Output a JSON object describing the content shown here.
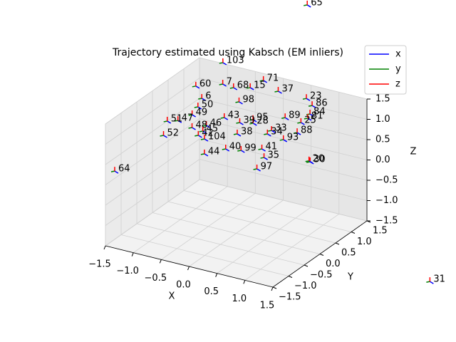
{
  "chart_data": {
    "type": "scatter3d",
    "title": "Trajectory estimated using Kabsch (EM inliers)",
    "xlabel": "X",
    "ylabel": "Y",
    "zlabel": "Z",
    "xlim": [
      -1.5,
      1.5
    ],
    "ylim": [
      -1.5,
      1.5
    ],
    "zlim": [
      -1.5,
      1.5
    ],
    "xticks": [
      {
        "value": -1.5,
        "label": "−1.5"
      },
      {
        "value": -1,
        "label": "−1.0"
      },
      {
        "value": -0.5,
        "label": "−0.5"
      },
      {
        "value": 0,
        "label": "0.0"
      },
      0.5,
      {
        "value": 1,
        "label": "1.0"
      },
      1.5
    ],
    "yticks": [
      {
        "value": -1.5,
        "label": "−1.5"
      },
      {
        "value": -1,
        "label": "−1.0"
      },
      {
        "value": -0.5,
        "label": "−0.5"
      },
      {
        "value": 0,
        "label": "0.0"
      },
      0.5,
      {
        "value": 1,
        "label": "1.0"
      },
      1.5
    ],
    "zticks": [
      {
        "value": -1.5,
        "label": "−1.5"
      },
      {
        "value": -1,
        "label": "−1.0"
      },
      {
        "value": -0.5,
        "label": "−0.5"
      },
      {
        "value": 0,
        "label": "0.0"
      },
      0.5,
      {
        "value": 1,
        "label": "1.0"
      },
      1.5
    ],
    "grid": true,
    "legend_loc": "upper right",
    "series": [
      {
        "name": "x",
        "color": "#0000ff"
      },
      {
        "name": "y",
        "color": "#008000"
      },
      {
        "name": "z",
        "color": "#ff0000"
      }
    ],
    "points": [
      {
        "label": "103",
        "x": -1.09,
        "y": 1.63,
        "z": 1.5
      },
      {
        "label": "71",
        "x": -0.37,
        "y": 1.64,
        "z": 1.3
      },
      {
        "label": "7",
        "x": -1.07,
        "y": 1.59,
        "z": 1
      },
      {
        "label": "60",
        "x": -1.39,
        "y": 1.3,
        "z": 1
      },
      {
        "label": "68",
        "x": -0.86,
        "y": 1.56,
        "z": 1
      },
      {
        "label": "15",
        "x": -0.64,
        "y": 1.7,
        "z": 1
      },
      {
        "label": "37",
        "x": -0.2,
        "y": 1.81,
        "z": 1
      },
      {
        "label": "23",
        "x": 0.31,
        "y": 1.8,
        "z": 1
      },
      {
        "label": "86",
        "x": 0.52,
        "y": 1.61,
        "z": 1
      },
      {
        "label": "84",
        "x": 0.65,
        "y": 1.31,
        "z": 1
      },
      {
        "label": "81",
        "x": 0.7,
        "y": 1.15,
        "z": 1
      },
      {
        "label": "25",
        "x": 0.69,
        "y": 0.95,
        "z": 1
      },
      {
        "label": "89",
        "x": 0.39,
        "y": 0.98,
        "z": 1
      },
      {
        "label": "88",
        "x": 0.83,
        "y": 0.58,
        "z": 1
      },
      {
        "label": "93",
        "x": 0.78,
        "y": 0.23,
        "z": 1
      },
      {
        "label": "33",
        "x": 0.45,
        "y": 0.44,
        "z": 1
      },
      {
        "label": "34",
        "x": 0.46,
        "y": 0.29,
        "z": 1
      },
      {
        "label": "95",
        "x": 0,
        "y": 0.65,
        "z": 1
      },
      {
        "label": "28",
        "x": 0.07,
        "y": 0.53,
        "z": 1
      },
      {
        "label": "39",
        "x": -0.12,
        "y": 0.44,
        "z": 1
      },
      {
        "label": "38",
        "x": 0.06,
        "y": 0.04,
        "z": 1
      },
      {
        "label": "98",
        "x": -0.52,
        "y": 1.13,
        "z": 1
      },
      {
        "label": "43",
        "x": -0.42,
        "y": 0.48,
        "z": 1
      },
      {
        "label": "6",
        "x": -1.08,
        "y": 0.94,
        "z": 1
      },
      {
        "label": "50",
        "x": -0.97,
        "y": 0.62,
        "z": 1
      },
      {
        "label": "49",
        "x": -0.9,
        "y": 0.31,
        "z": 1
      },
      {
        "label": "47",
        "x": -0.98,
        "y": 0,
        "z": 1
      },
      {
        "label": "51",
        "x": -1.11,
        "y": -0.11,
        "z": 1
      },
      {
        "label": "46",
        "x": -0.51,
        "y": 0.07,
        "z": 1
      },
      {
        "label": "48",
        "x": -0.66,
        "y": -0.12,
        "z": 1
      },
      {
        "label": "45",
        "x": -0.45,
        "y": -0.15,
        "z": 1
      },
      {
        "label": "42",
        "x": -0.43,
        "y": -0.33,
        "z": 1
      },
      {
        "label": "104",
        "x": -0.28,
        "y": -0.4,
        "z": 1
      },
      {
        "label": "52",
        "x": -0.89,
        "y": -0.62,
        "z": 1
      },
      {
        "label": "44",
        "x": 0,
        "y": -0.9,
        "z": 1
      },
      {
        "label": "40",
        "x": 0.19,
        "y": -0.56,
        "z": 1
      },
      {
        "label": "99",
        "x": 0.42,
        "y": -0.48,
        "z": 1
      },
      {
        "label": "41",
        "x": 0.67,
        "y": -0.26,
        "z": 1
      },
      {
        "label": "35",
        "x": 0.86,
        "y": -0.53,
        "z": 1
      },
      {
        "label": "97",
        "x": 0.98,
        "y": -0.97,
        "z": 1
      },
      {
        "label": "30",
        "x": 1.55,
        "y": -0.29,
        "z": 1
      },
      {
        "label": "20",
        "x": 1.52,
        "y": -0.27,
        "z": 1
      },
      {
        "label": "64",
        "x": -1.63,
        "y": -0.86,
        "z": 0
      },
      {
        "label": "65",
        "x": 0.09,
        "y": 2.22,
        "z": 3
      },
      {
        "label": "31",
        "x": 2.72,
        "y": 1.45,
        "z": -2.5
      }
    ]
  }
}
